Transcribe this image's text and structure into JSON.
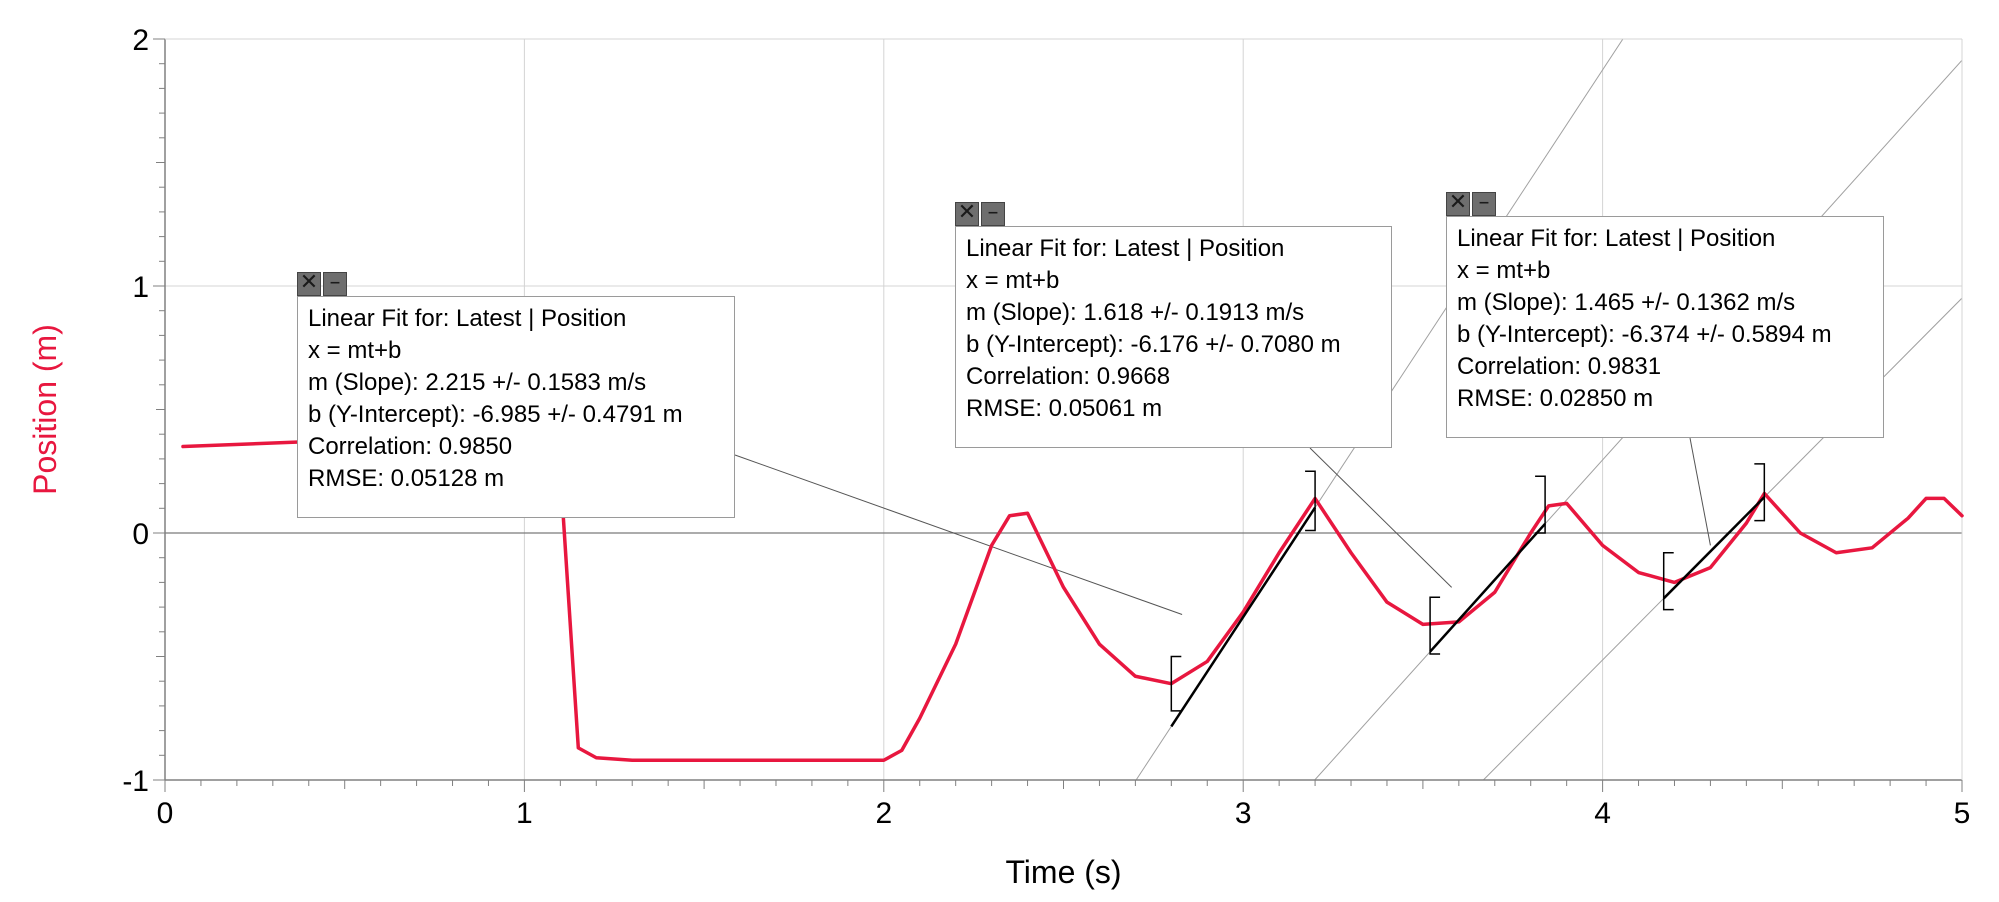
{
  "chart_data": {
    "type": "line",
    "xlabel": "Time (s)",
    "ylabel": "Position (m)",
    "xlim": [
      0,
      5
    ],
    "ylim": [
      -1,
      2
    ],
    "x_ticks": [
      "0",
      "1",
      "2",
      "3",
      "4",
      "5"
    ],
    "y_ticks": [
      "-1",
      "0",
      "1",
      "2"
    ],
    "grid": true,
    "series": [
      {
        "color": "#e8173f",
        "x": [
          0.05,
          0.4,
          1.05,
          1.1,
          1.12,
          1.15,
          1.2,
          1.3,
          1.5,
          1.8,
          2.0,
          2.05,
          2.1,
          2.2,
          2.3,
          2.35,
          2.4,
          2.5,
          2.6,
          2.7,
          2.8,
          2.9,
          3.0,
          3.1,
          3.2,
          3.3,
          3.4,
          3.5,
          3.6,
          3.7,
          3.8,
          3.85,
          3.9,
          4.0,
          4.1,
          4.2,
          4.3,
          4.4,
          4.45,
          4.55,
          4.65,
          4.75,
          4.85,
          4.9,
          4.95,
          5.0
        ],
        "y": [
          0.35,
          0.37,
          0.38,
          0.25,
          -0.2,
          -0.87,
          -0.91,
          -0.92,
          -0.92,
          -0.92,
          -0.92,
          -0.88,
          -0.75,
          -0.45,
          -0.05,
          0.07,
          0.08,
          -0.22,
          -0.45,
          -0.58,
          -0.61,
          -0.52,
          -0.32,
          -0.08,
          0.14,
          -0.08,
          -0.28,
          -0.37,
          -0.36,
          -0.24,
          0.0,
          0.11,
          0.12,
          -0.05,
          -0.16,
          -0.2,
          -0.14,
          0.04,
          0.16,
          0.0,
          -0.08,
          -0.06,
          0.06,
          0.14,
          0.14,
          0.07
        ]
      }
    ],
    "linear_fits": [
      {
        "title": "Linear Fit for: Latest | Position",
        "equation": "x = mt+b",
        "slope": "m (Slope): 2.215 +/- 0.1583 m/s",
        "intercept": "b (Y-Intercept): -6.985 +/- 0.4791 m",
        "correlation": "Correlation: 0.9850",
        "rmse": "RMSE: 0.05128 m",
        "m": 2.215,
        "b": -6.985,
        "range": [
          2.8,
          3.2
        ],
        "bracket_left": [
          -0.72,
          -0.5
        ],
        "bracket_right": [
          0.01,
          0.25
        ]
      },
      {
        "title": "Linear Fit for: Latest | Position",
        "equation": "x = mt+b",
        "slope": "m (Slope): 1.618 +/- 0.1913 m/s",
        "intercept": "b (Y-Intercept): -6.176 +/- 0.7080 m",
        "correlation": "Correlation: 0.9668",
        "rmse": "RMSE: 0.05061 m",
        "m": 1.618,
        "b": -6.176,
        "range": [
          3.52,
          3.84
        ],
        "bracket_left": [
          -0.49,
          -0.26
        ],
        "bracket_right": [
          0.0,
          0.23
        ]
      },
      {
        "title": "Linear Fit for: Latest | Position",
        "equation": "x = mt+b",
        "slope": "m (Slope): 1.465 +/- 0.1362 m/s",
        "intercept": "b (Y-Intercept): -6.374 +/- 0.5894 m",
        "correlation": "Correlation: 0.9831",
        "rmse": "RMSE: 0.02850 m",
        "m": 1.465,
        "b": -6.374,
        "range": [
          4.17,
          4.45
        ],
        "bracket_left": [
          -0.31,
          -0.08
        ],
        "bracket_right": [
          0.05,
          0.28
        ]
      }
    ]
  },
  "ui": {
    "close_icon": "close-icon",
    "minimize_icon": "minimize-icon",
    "close_glyph": "✕",
    "minimize_glyph": "–"
  }
}
